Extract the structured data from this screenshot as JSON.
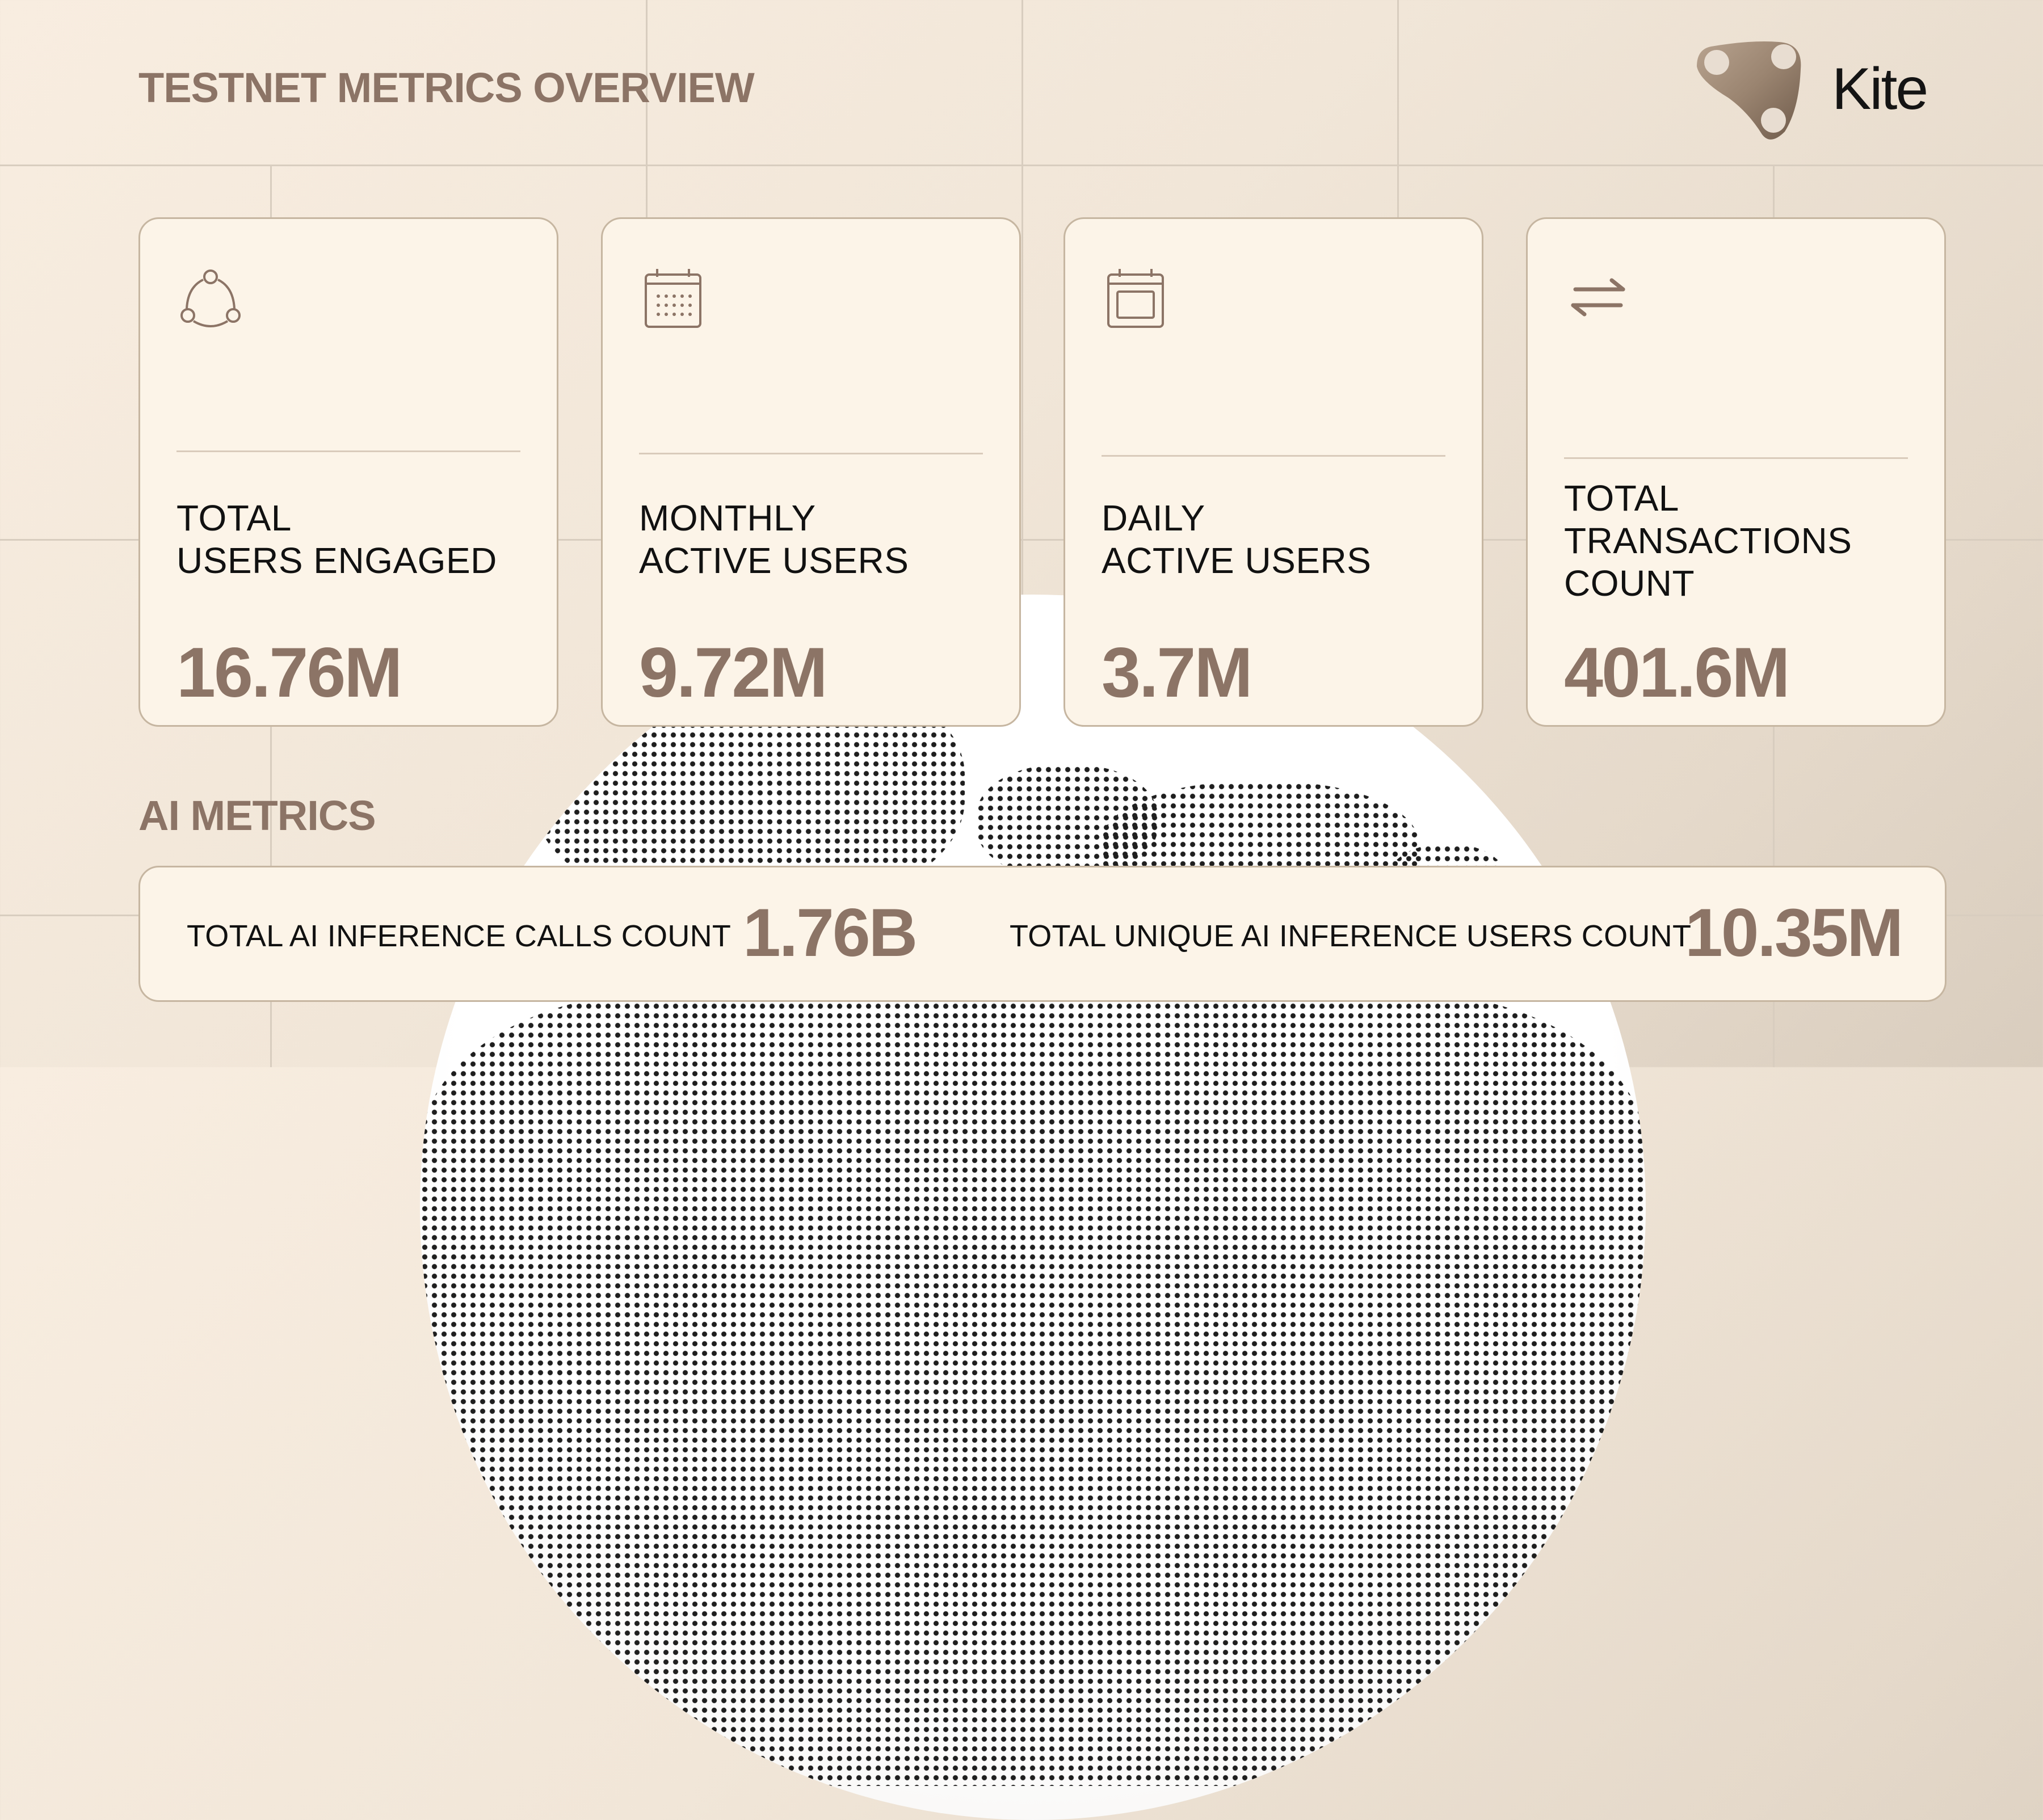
{
  "header": {
    "title": "TESTNET METRICS OVERVIEW",
    "brand": "Kite"
  },
  "cards": [
    {
      "icon": "users-network-icon",
      "label_lines": [
        "TOTAL",
        "USERS ENGAGED"
      ],
      "value": "16.76M"
    },
    {
      "icon": "calendar-month-icon",
      "label_lines": [
        "MONTHLY",
        "ACTIVE USERS"
      ],
      "value": "9.72M"
    },
    {
      "icon": "calendar-day-icon",
      "label_lines": [
        "DAILY",
        "ACTIVE USERS"
      ],
      "value": "3.7M"
    },
    {
      "icon": "transfer-arrows-icon",
      "label_lines": [
        "TOTAL",
        "TRANSACTIONS",
        "COUNT"
      ],
      "value": "401.6M"
    }
  ],
  "ai_metrics": {
    "title": "AI METRICS",
    "items": [
      {
        "label": "TOTAL AI INFERENCE CALLS COUNT",
        "value": "1.76B"
      },
      {
        "label": "TOTAL UNIQUE AI INFERENCE USERS COUNT",
        "value": "10.35M"
      }
    ]
  },
  "colors": {
    "accent": "#8c7466",
    "card_bg": "#fcf4e8",
    "card_border": "#c6b6a1",
    "text_dark": "#111111"
  }
}
